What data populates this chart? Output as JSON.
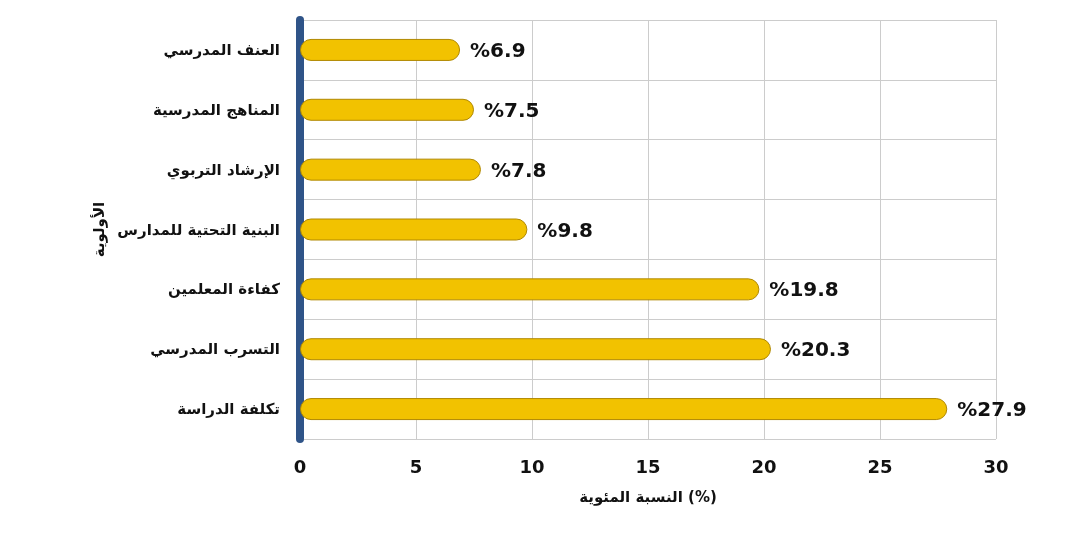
{
  "chart_data": {
    "type": "bar",
    "orientation": "horizontal",
    "xlabel": "النسبة المئوية (%)",
    "ylabel": "الأولوية",
    "categories": [
      "العنف المدرسي",
      "المناهج المدرسية",
      "الإرشاد التربوي",
      "البنية التحتية للمدارس",
      "كفاءة المعلمين",
      "التسرب المدرسي",
      "تكلفة الدراسة"
    ],
    "values": [
      6.9,
      7.5,
      7.8,
      9.8,
      19.8,
      20.3,
      27.9
    ],
    "value_labels": [
      "%6.9",
      "%7.5",
      "%7.8",
      "%9.8",
      "%19.8",
      "%20.3",
      "%27.9"
    ],
    "color": "#f2c200",
    "xlim": [
      0,
      30
    ],
    "xticks": [
      0,
      5,
      10,
      15,
      20,
      25,
      30
    ],
    "grid": true
  }
}
